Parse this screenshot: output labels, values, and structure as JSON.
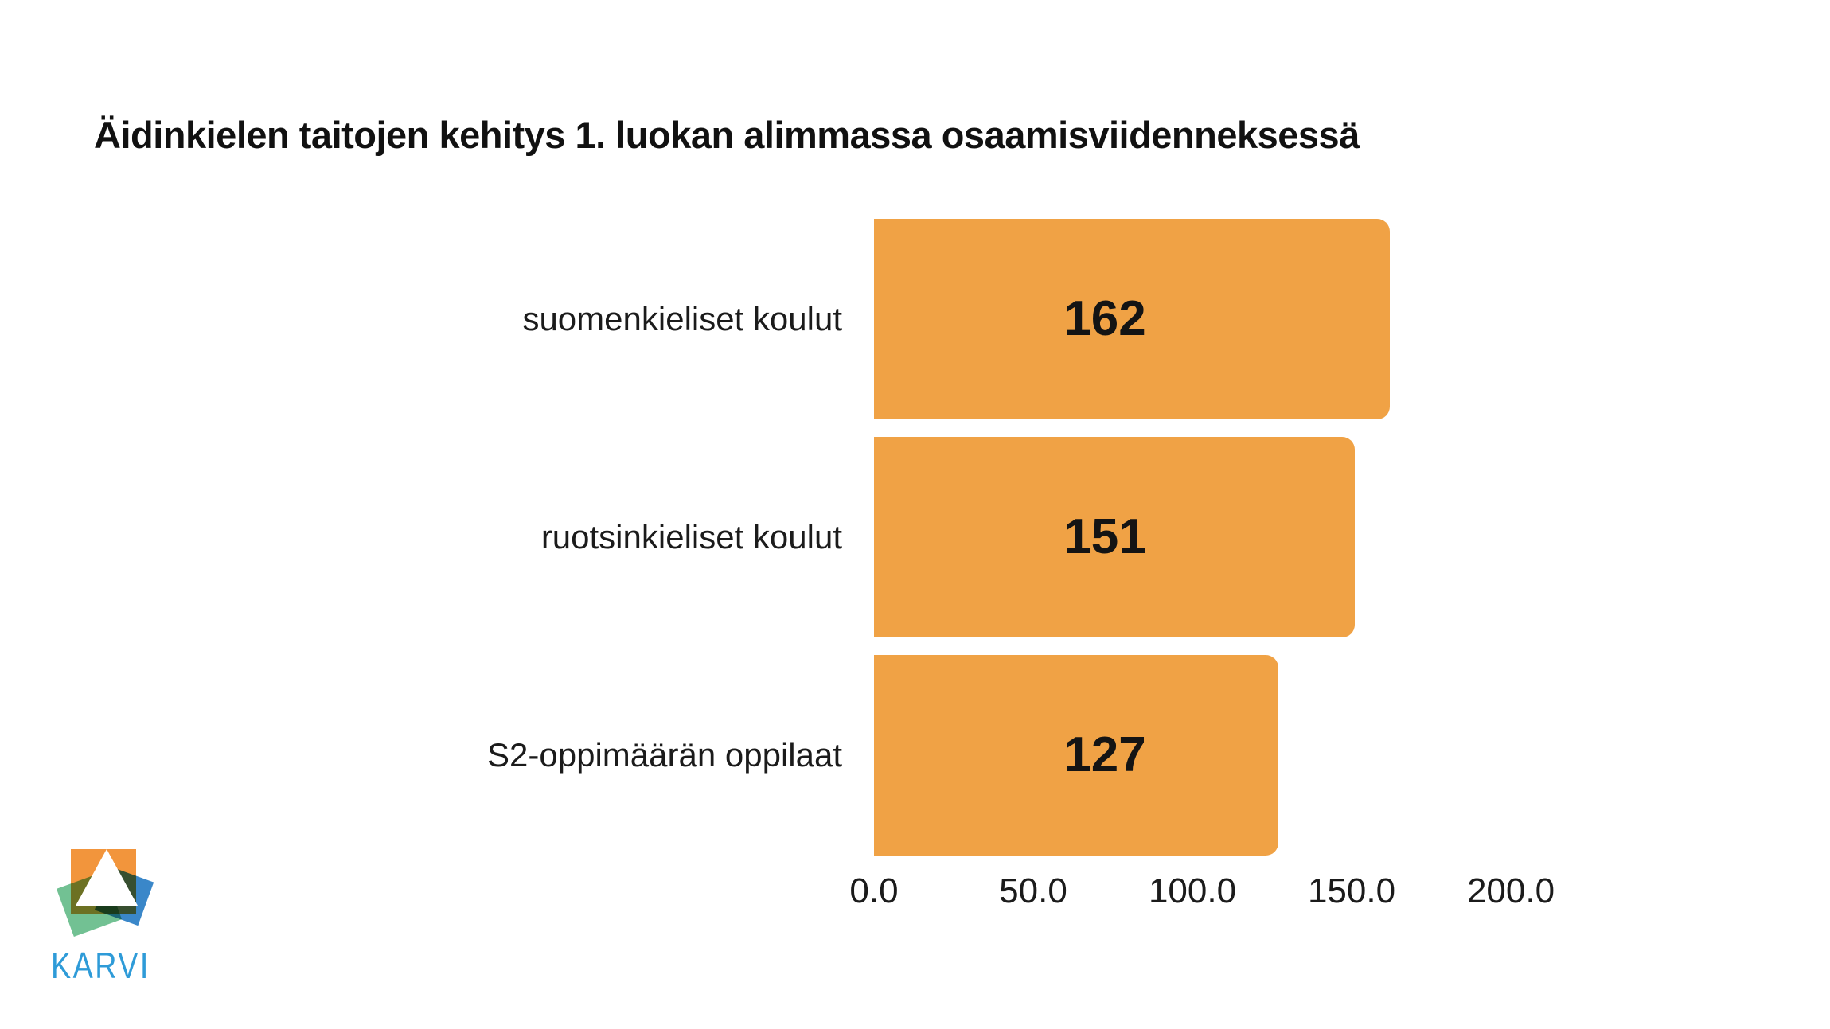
{
  "title": "Äidinkielen taitojen kehitys 1. luokan alimmassa osaamisviidenneksessä",
  "chart_data": {
    "type": "bar",
    "orientation": "horizontal",
    "title": "Äidinkielen taitojen kehitys 1. luokan alimmassa osaamisviidenneksessä",
    "categories": [
      "suomenkieliset koulut",
      "ruotsinkieliset koulut",
      "S2-oppimäärän oppilaat"
    ],
    "values": [
      162,
      151,
      127
    ],
    "value_labels": [
      "162",
      "151",
      "127"
    ],
    "xlim": [
      0,
      200
    ],
    "x_ticks": [
      0,
      50,
      100,
      150,
      200
    ],
    "x_tick_labels": [
      "0.0",
      "50.0",
      "100.0",
      "150.0",
      "200.0"
    ],
    "bar_color": "#F0A245",
    "value_label_color": "#141414",
    "grid": false,
    "legend": false
  },
  "logo": {
    "text": "KARVI",
    "text_color": "#2E9BD8",
    "colors": {
      "orange": "#F2953C",
      "green": "#72C193",
      "blue": "#3A87C9",
      "triangle": "#FFFFFF"
    }
  },
  "colors": {
    "background": "#FFFFFF",
    "title": "#111111"
  }
}
